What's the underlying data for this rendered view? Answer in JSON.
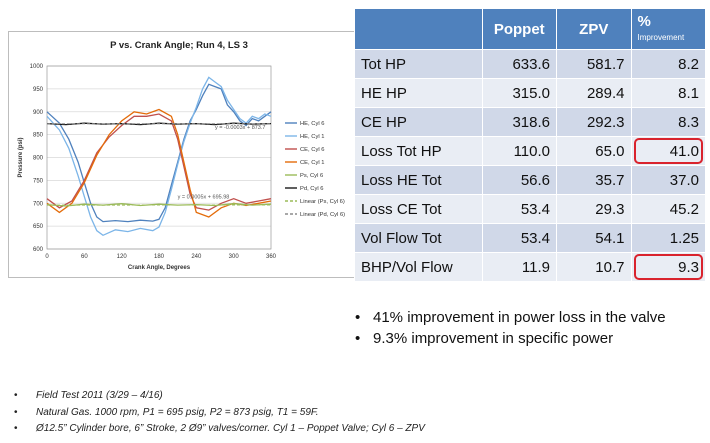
{
  "chart_data": {
    "type": "line",
    "title": "P vs. Crank Angle; Run 4, LS 3",
    "xlabel": "Crank Angle, Degrees",
    "ylabel": "Pressure (psi)",
    "xlim": [
      0,
      360
    ],
    "ylim": [
      600,
      1000
    ],
    "xticks": [
      "0",
      "60",
      "120",
      "180",
      "240",
      "300",
      "360"
    ],
    "yticks": [
      "600",
      "650",
      "700",
      "750",
      "800",
      "850",
      "900",
      "950",
      "1000"
    ],
    "grid": true,
    "legend_position": "right",
    "annotations": {
      "upper": "y = -0.0003x + 873.7",
      "lower": "y = 0.0005x + 695.98"
    },
    "series": [
      {
        "name": "HE, Cyl 6",
        "color": "#4f81bd",
        "x": [
          0,
          20,
          35,
          50,
          60,
          70,
          80,
          90,
          110,
          130,
          150,
          170,
          180,
          190,
          200,
          210,
          220,
          230,
          240,
          250,
          260,
          270,
          280,
          290,
          300,
          310,
          320,
          330,
          340,
          350,
          360
        ],
        "y": [
          900,
          875,
          840,
          790,
          745,
          700,
          670,
          660,
          662,
          660,
          663,
          661,
          665,
          690,
          740,
          790,
          840,
          880,
          905,
          935,
          960,
          955,
          950,
          915,
          900,
          880,
          870,
          885,
          880,
          890,
          900
        ]
      },
      {
        "name": "HE, Cyl 1",
        "color": "#7cb5e8",
        "x": [
          0,
          20,
          35,
          50,
          60,
          70,
          80,
          90,
          110,
          130,
          150,
          170,
          180,
          190,
          200,
          210,
          220,
          230,
          240,
          250,
          260,
          270,
          280,
          290,
          300,
          310,
          320,
          330,
          340,
          350,
          360
        ],
        "y": [
          890,
          860,
          820,
          760,
          715,
          670,
          640,
          630,
          642,
          638,
          645,
          640,
          648,
          680,
          730,
          785,
          835,
          875,
          910,
          950,
          975,
          965,
          955,
          925,
          905,
          885,
          875,
          890,
          885,
          895,
          890
        ]
      },
      {
        "name": "CE, Cyl 6",
        "color": "#c0504d",
        "x": [
          0,
          20,
          40,
          60,
          80,
          100,
          120,
          140,
          160,
          180,
          200,
          210,
          220,
          230,
          240,
          260,
          280,
          300,
          320,
          340,
          360
        ],
        "y": [
          710,
          690,
          705,
          750,
          810,
          845,
          870,
          890,
          890,
          895,
          880,
          840,
          780,
          720,
          690,
          685,
          700,
          710,
          700,
          705,
          710
        ]
      },
      {
        "name": "CE, Cyl 1",
        "color": "#e46c0a",
        "x": [
          0,
          20,
          40,
          60,
          80,
          100,
          120,
          140,
          160,
          180,
          200,
          210,
          220,
          230,
          240,
          260,
          280,
          300,
          320,
          340,
          360
        ],
        "y": [
          700,
          680,
          700,
          745,
          805,
          850,
          880,
          900,
          895,
          905,
          890,
          850,
          790,
          730,
          680,
          670,
          690,
          700,
          695,
          700,
          705
        ]
      },
      {
        "name": "Ps, Cyl 6",
        "color": "#9bbb59",
        "x": [
          0,
          30,
          60,
          90,
          120,
          150,
          180,
          210,
          240,
          270,
          300,
          330,
          360
        ],
        "y": [
          697,
          694,
          698,
          696,
          699,
          695,
          698,
          696,
          697,
          695,
          699,
          696,
          698
        ]
      },
      {
        "name": "Pd, Cyl 6",
        "color": "#1a1a1a",
        "x": [
          0,
          30,
          60,
          90,
          120,
          150,
          180,
          210,
          240,
          270,
          300,
          330,
          360
        ],
        "y": [
          874,
          872,
          875,
          873,
          874,
          872,
          875,
          873,
          874,
          872,
          875,
          873,
          874
        ]
      },
      {
        "name": "Linear (Ps, Cyl 6)",
        "color": "#9bbb59",
        "dash": true,
        "x": [
          0,
          360
        ],
        "y": [
          695.98,
          696.16
        ]
      },
      {
        "name": "Linear (Pd, Cyl 6)",
        "color": "#8c8c8c",
        "dash": true,
        "x": [
          0,
          360
        ],
        "y": [
          873.7,
          873.59
        ]
      }
    ]
  },
  "table": {
    "headers": {
      "poppet": "Poppet",
      "zpv": "ZPV",
      "pct": "%",
      "pct_sub": "Improvement"
    },
    "rows": [
      {
        "label": "Tot HP",
        "poppet": "633.6",
        "zpv": "581.7",
        "pct": "8.2",
        "highlight": false
      },
      {
        "label": "HE HP",
        "poppet": "315.0",
        "zpv": "289.4",
        "pct": "8.1",
        "highlight": false
      },
      {
        "label": "CE HP",
        "poppet": "318.6",
        "zpv": "292.3",
        "pct": "8.3",
        "highlight": false
      },
      {
        "label": "Loss Tot HP",
        "poppet": "110.0",
        "zpv": "65.0",
        "pct": "41.0",
        "highlight": true
      },
      {
        "label": "Loss HE Tot",
        "poppet": "56.6",
        "zpv": "35.7",
        "pct": "37.0",
        "highlight": false
      },
      {
        "label": "Loss CE Tot",
        "poppet": "53.4",
        "zpv": "29.3",
        "pct": "45.2",
        "highlight": false
      },
      {
        "label": "Vol Flow Tot",
        "poppet": "53.4",
        "zpv": "54.1",
        "pct": "1.25",
        "highlight": false
      },
      {
        "label": "BHP/Vol Flow",
        "poppet": "11.9",
        "zpv": "10.7",
        "pct": "9.3",
        "highlight": true
      }
    ]
  },
  "bullets": [
    "41% improvement in power loss in the valve",
    "9.3% improvement in specific power"
  ],
  "notes": [
    "Field Test 2011 (3/29 – 4/16)",
    "Natural Gas. 1000 rpm, P1 = 695 psig, P2 = 873 psig, T1 = 59F.",
    "Ø12.5” Cylinder bore, 6” Stroke, 2 Ø9” valves/corner. Cyl 1 – Poppet Valve; Cyl 6 – ZPV"
  ],
  "colors": {
    "header": "#4f81bd",
    "row_odd": "#d0d8e8",
    "row_even": "#e9edf4",
    "highlight": "#d9232d"
  }
}
